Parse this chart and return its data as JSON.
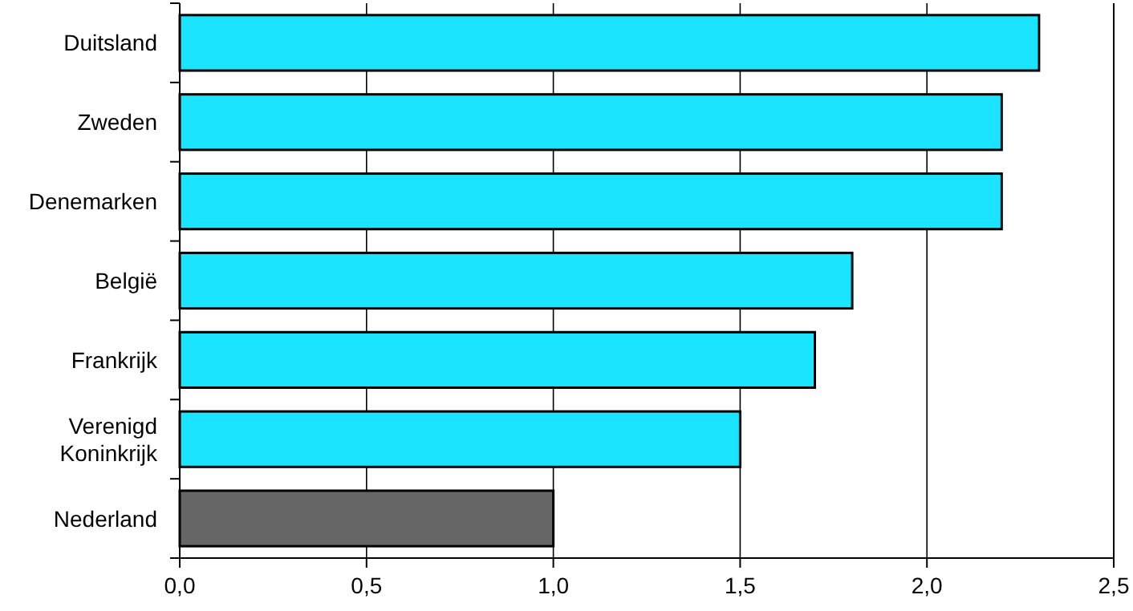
{
  "chart_data": {
    "type": "bar",
    "orientation": "horizontal",
    "categories": [
      "Duitsland",
      "Zweden",
      "Denemarken",
      "België",
      "Frankrijk",
      "Verenigd Koninkrijk",
      "Nederland"
    ],
    "values": [
      2.3,
      2.2,
      2.2,
      1.8,
      1.7,
      1.5,
      1.0
    ],
    "colors": [
      "#1ae4ff",
      "#1ae4ff",
      "#1ae4ff",
      "#1ae4ff",
      "#1ae4ff",
      "#1ae4ff",
      "#666666"
    ],
    "xlim": [
      0,
      2.5
    ],
    "xticks": [
      {
        "value": 0,
        "label": "0,0"
      },
      {
        "value": 0.5,
        "label": "0,5"
      },
      {
        "value": 1,
        "label": "1,0"
      },
      {
        "value": 1.5,
        "label": "1,5"
      },
      {
        "value": 2,
        "label": "2,0"
      },
      {
        "value": 2.5,
        "label": "2,5"
      }
    ],
    "grid": "x"
  }
}
